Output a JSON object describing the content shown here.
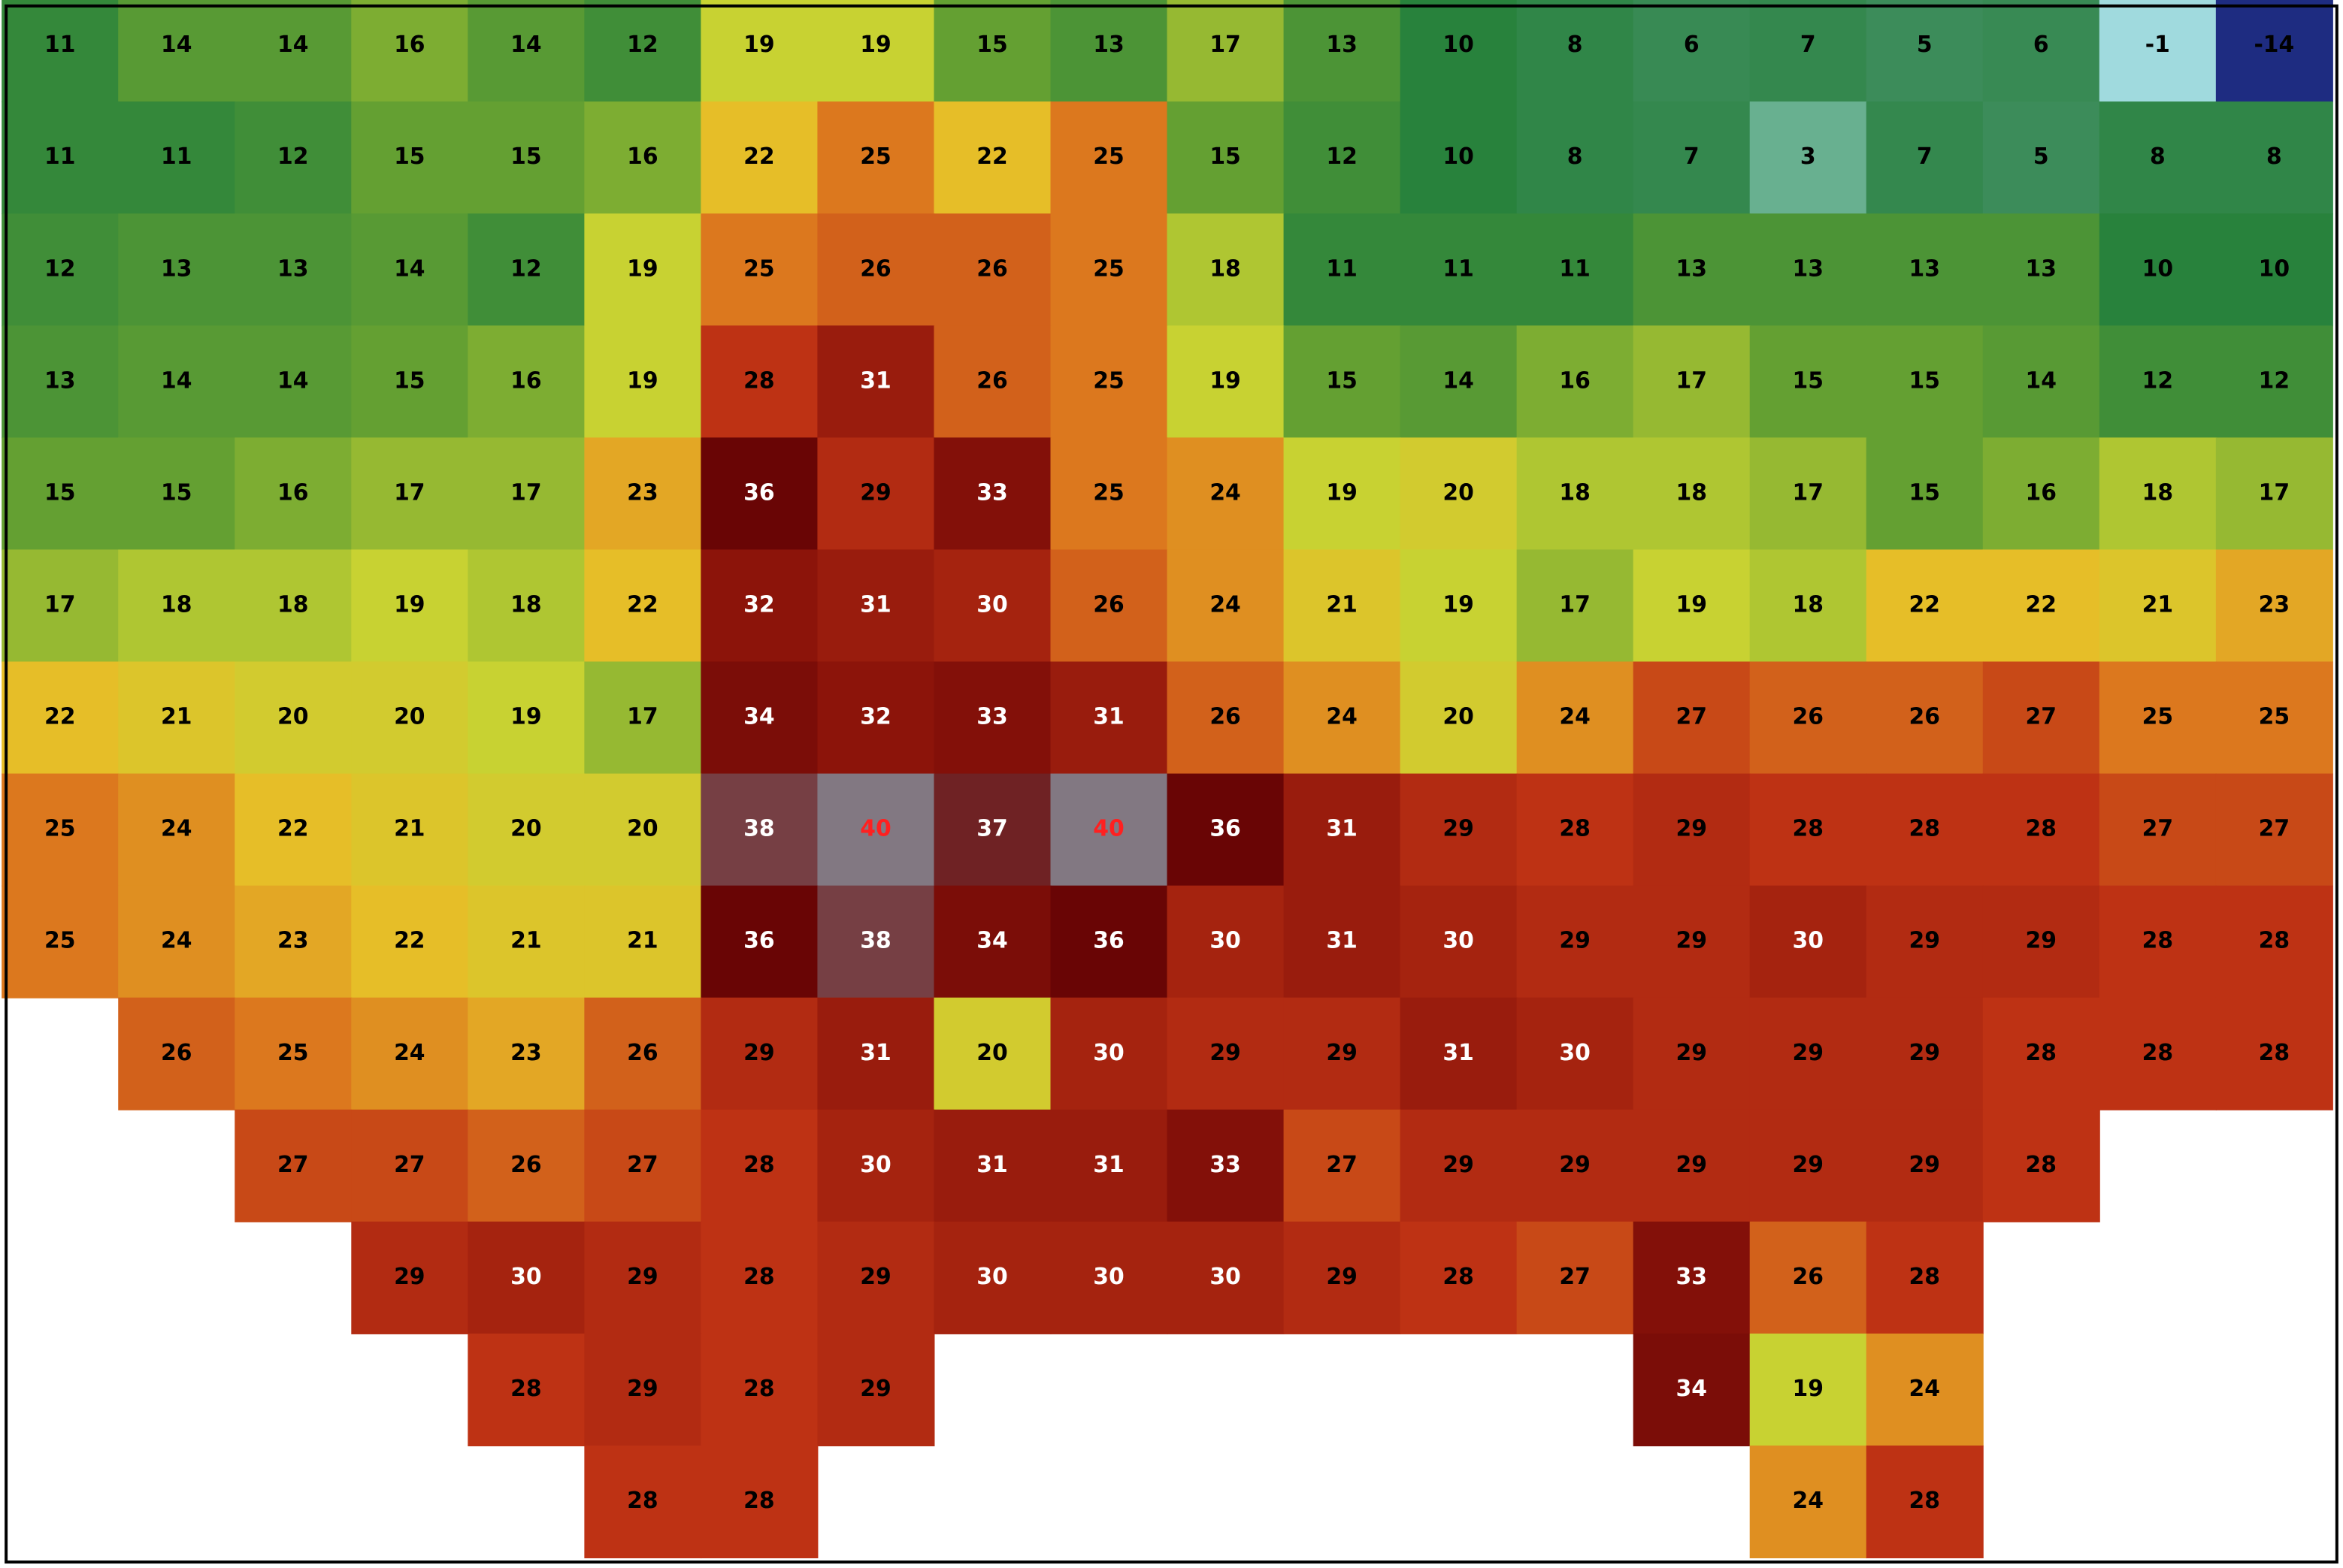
{
  "grid": {
    "rows": [
      [
        11,
        14,
        14,
        16,
        14,
        12,
        19,
        19,
        15,
        13,
        17,
        13,
        10,
        8,
        6,
        7,
        5,
        6,
        -1,
        -14
      ],
      [
        11,
        11,
        12,
        15,
        15,
        16,
        22,
        25,
        22,
        25,
        15,
        12,
        10,
        8,
        7,
        3,
        7,
        5,
        8,
        8
      ],
      [
        12,
        13,
        13,
        14,
        12,
        19,
        25,
        26,
        26,
        25,
        18,
        11,
        11,
        11,
        13,
        13,
        13,
        13,
        10,
        10
      ],
      [
        13,
        14,
        14,
        15,
        16,
        19,
        28,
        31,
        26,
        25,
        19,
        15,
        14,
        16,
        17,
        15,
        15,
        14,
        12,
        12
      ],
      [
        15,
        15,
        16,
        17,
        17,
        23,
        36,
        29,
        33,
        25,
        24,
        19,
        20,
        18,
        18,
        17,
        15,
        16,
        18,
        17
      ],
      [
        17,
        18,
        18,
        19,
        18,
        22,
        32,
        31,
        30,
        26,
        24,
        21,
        19,
        17,
        19,
        18,
        22,
        22,
        21,
        23
      ],
      [
        22,
        21,
        20,
        20,
        19,
        17,
        34,
        32,
        33,
        31,
        26,
        24,
        20,
        24,
        27,
        26,
        26,
        27,
        25,
        25
      ],
      [
        25,
        24,
        22,
        21,
        20,
        20,
        38,
        40,
        37,
        40,
        36,
        31,
        29,
        28,
        29,
        28,
        28,
        28,
        27,
        27
      ],
      [
        25,
        24,
        23,
        22,
        21,
        21,
        36,
        38,
        34,
        36,
        30,
        31,
        30,
        29,
        29,
        30,
        29,
        29,
        28,
        28
      ],
      [
        null,
        26,
        25,
        24,
        23,
        26,
        29,
        31,
        20,
        30,
        29,
        29,
        31,
        30,
        29,
        29,
        29,
        28,
        28,
        28
      ],
      [
        null,
        null,
        27,
        27,
        26,
        27,
        28,
        30,
        31,
        31,
        33,
        27,
        29,
        29,
        29,
        29,
        29,
        28,
        null,
        null
      ],
      [
        null,
        null,
        null,
        29,
        30,
        29,
        28,
        29,
        30,
        30,
        30,
        29,
        28,
        27,
        33,
        26,
        28,
        null,
        null,
        null
      ],
      [
        null,
        null,
        null,
        null,
        28,
        29,
        28,
        29,
        null,
        null,
        null,
        null,
        null,
        null,
        34,
        19,
        24,
        null,
        null,
        null
      ],
      [
        null,
        null,
        null,
        null,
        null,
        28,
        28,
        null,
        null,
        null,
        null,
        null,
        null,
        null,
        null,
        24,
        28,
        null,
        null,
        null
      ]
    ]
  }
}
